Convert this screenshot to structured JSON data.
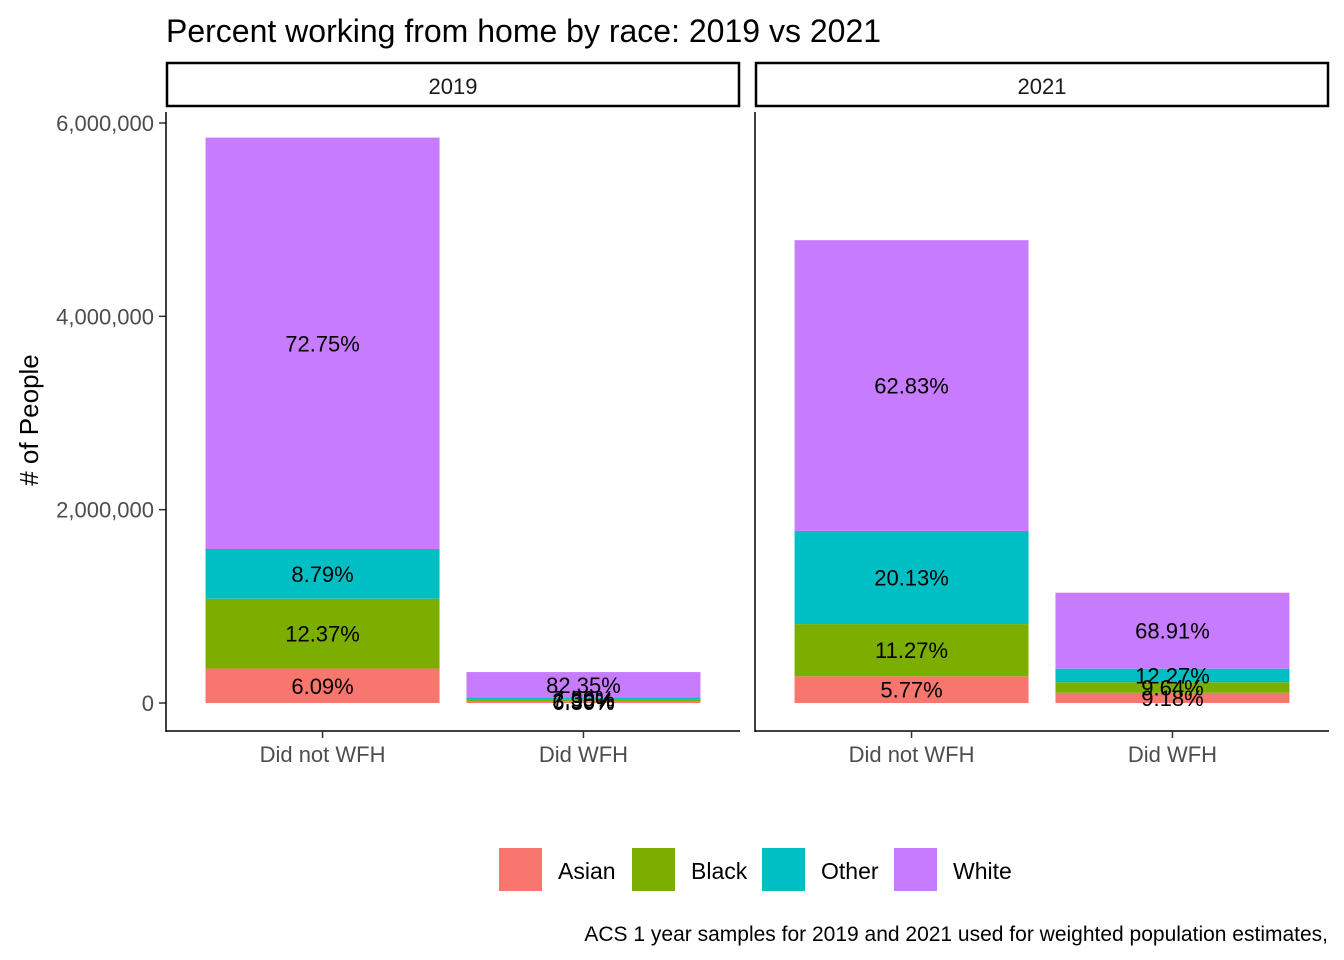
{
  "chart_data": {
    "type": "bar",
    "stacked": true,
    "title": "Percent working from home by race: 2019 vs 2021",
    "ylabel": "# of People",
    "xlabel": "",
    "ylim": [
      0,
      6000000
    ],
    "y_ticks": [
      0,
      2000000,
      4000000,
      6000000
    ],
    "y_tick_labels": [
      "0",
      "2,000,000",
      "4,000,000",
      "6,000,000"
    ],
    "categories": [
      "Did not WFH",
      "Did WFH"
    ],
    "legend": {
      "position": "bottom",
      "items": [
        {
          "name": "Asian",
          "color": "#F8766D"
        },
        {
          "name": "Black",
          "color": "#7CAE00"
        },
        {
          "name": "Other",
          "color": "#00BFC4"
        },
        {
          "name": "White",
          "color": "#C77CFF"
        }
      ]
    },
    "caption": "ACS 1 year samples for 2019 and 2021 used for weighted population estimates,",
    "panels": [
      {
        "label": "2019",
        "bars": [
          {
            "category": "Did not WFH",
            "segments": [
              {
                "series": "Asian",
                "value": 356000,
                "label": "6.09%"
              },
              {
                "series": "Black",
                "value": 723000,
                "label": "12.37%"
              },
              {
                "series": "Other",
                "value": 514000,
                "label": "8.79%"
              },
              {
                "series": "White",
                "value": 4256000,
                "label": "72.75%"
              }
            ]
          },
          {
            "category": "Did WFH",
            "segments": [
              {
                "series": "Asian",
                "value": 20000,
                "label": "6.30%"
              },
              {
                "series": "Black",
                "value": 13000,
                "label": "3.96%"
              },
              {
                "series": "Other",
                "value": 23000,
                "label": "7.39%"
              },
              {
                "series": "White",
                "value": 264000,
                "label": "82.35%"
              }
            ]
          }
        ]
      },
      {
        "label": "2021",
        "bars": [
          {
            "category": "Did not WFH",
            "segments": [
              {
                "series": "Asian",
                "value": 276000,
                "label": "5.77%"
              },
              {
                "series": "Black",
                "value": 540000,
                "label": "11.27%"
              },
              {
                "series": "Other",
                "value": 964000,
                "label": "20.13%"
              },
              {
                "series": "White",
                "value": 3008000,
                "label": "62.83%"
              }
            ]
          },
          {
            "category": "Did WFH",
            "segments": [
              {
                "series": "Asian",
                "value": 105000,
                "label": "9.18%"
              },
              {
                "series": "Black",
                "value": 110000,
                "label": "9.64%"
              },
              {
                "series": "Other",
                "value": 140000,
                "label": "12.27%"
              },
              {
                "series": "White",
                "value": 786000,
                "label": "68.91%"
              }
            ]
          }
        ]
      }
    ]
  }
}
